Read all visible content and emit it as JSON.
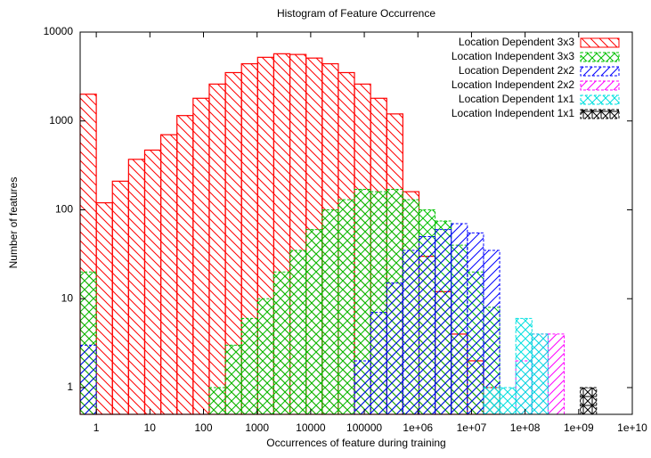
{
  "chart_data": {
    "type": "histogram",
    "title": "Histogram of Feature Occurrence",
    "xlabel": "Occurrences of feature during training",
    "ylabel": "Number of features",
    "xscale": "log",
    "yscale": "log",
    "xlim": [
      0.5,
      10000000000
    ],
    "ylim": [
      0.5,
      10000
    ],
    "xticks": [
      1,
      10,
      100,
      1000,
      10000,
      100000,
      {
        "value": 1000000,
        "label": "1e+06"
      },
      {
        "value": 10000000,
        "label": "1e+07"
      },
      {
        "value": 100000000,
        "label": "1e+08"
      },
      {
        "value": 1000000000,
        "label": "1e+09"
      },
      {
        "value": 10000000000,
        "label": "1e+10"
      }
    ],
    "yticks": [
      1,
      10,
      100,
      1000,
      10000
    ],
    "legend": "upper right",
    "bins": [
      0.5,
      1,
      2,
      4,
      8,
      16,
      32,
      64,
      128,
      256,
      512,
      1024,
      2048,
      4096,
      8192,
      16384,
      32768,
      65536,
      131072,
      262144,
      524288,
      1048576,
      2097152,
      4194304,
      8388608,
      16777216,
      33554432,
      67108864,
      134217728,
      268435456,
      536870912,
      1073741824,
      2147483648,
      4294967296,
      8589934592
    ],
    "series": [
      {
        "name": "Location Dependent 3x3",
        "color": "#ff0000",
        "values": [
          2000,
          120,
          210,
          370,
          470,
          700,
          1150,
          1800,
          2600,
          3500,
          4400,
          5200,
          5700,
          5600,
          5100,
          4400,
          3500,
          2600,
          1800,
          1200,
          160,
          30,
          12,
          4,
          2,
          1,
          null,
          null,
          null,
          null,
          null,
          null,
          null,
          null
        ]
      },
      {
        "name": "Location Independent 3x3",
        "color": "#00c000",
        "values": [
          20,
          null,
          null,
          null,
          null,
          null,
          null,
          null,
          1,
          3,
          6,
          10,
          20,
          35,
          60,
          100,
          130,
          170,
          160,
          170,
          130,
          100,
          75,
          40,
          20,
          8,
          null,
          null,
          null,
          null,
          null,
          null,
          null,
          null
        ]
      },
      {
        "name": "Location Dependent 2x2",
        "color": "#0000ff",
        "values": [
          3,
          null,
          null,
          null,
          null,
          null,
          null,
          null,
          null,
          null,
          null,
          null,
          null,
          null,
          null,
          null,
          null,
          2,
          7,
          15,
          35,
          50,
          60,
          70,
          55,
          35,
          null,
          null,
          null,
          null,
          null,
          null,
          null,
          null
        ]
      },
      {
        "name": "Location Independent 2x2",
        "color": "#ff00ff",
        "values": [
          null,
          null,
          null,
          null,
          null,
          null,
          null,
          null,
          null,
          null,
          null,
          null,
          null,
          null,
          null,
          null,
          null,
          null,
          null,
          null,
          null,
          null,
          null,
          null,
          null,
          null,
          null,
          2,
          4,
          4,
          null,
          null,
          null,
          null
        ]
      },
      {
        "name": "Location Dependent 1x1",
        "color": "#00e0e0",
        "values": [
          null,
          null,
          null,
          null,
          null,
          null,
          null,
          null,
          null,
          null,
          null,
          null,
          null,
          null,
          null,
          null,
          null,
          null,
          null,
          null,
          null,
          null,
          null,
          null,
          null,
          1,
          1,
          6,
          4,
          null,
          null,
          null,
          null,
          null
        ]
      },
      {
        "name": "Location Independent 1x1",
        "color": "#000000",
        "values": [
          null,
          null,
          null,
          null,
          null,
          null,
          null,
          null,
          null,
          null,
          null,
          null,
          null,
          null,
          null,
          null,
          null,
          null,
          null,
          null,
          null,
          null,
          null,
          null,
          null,
          null,
          null,
          null,
          null,
          null,
          null,
          1,
          null,
          null
        ]
      }
    ]
  }
}
